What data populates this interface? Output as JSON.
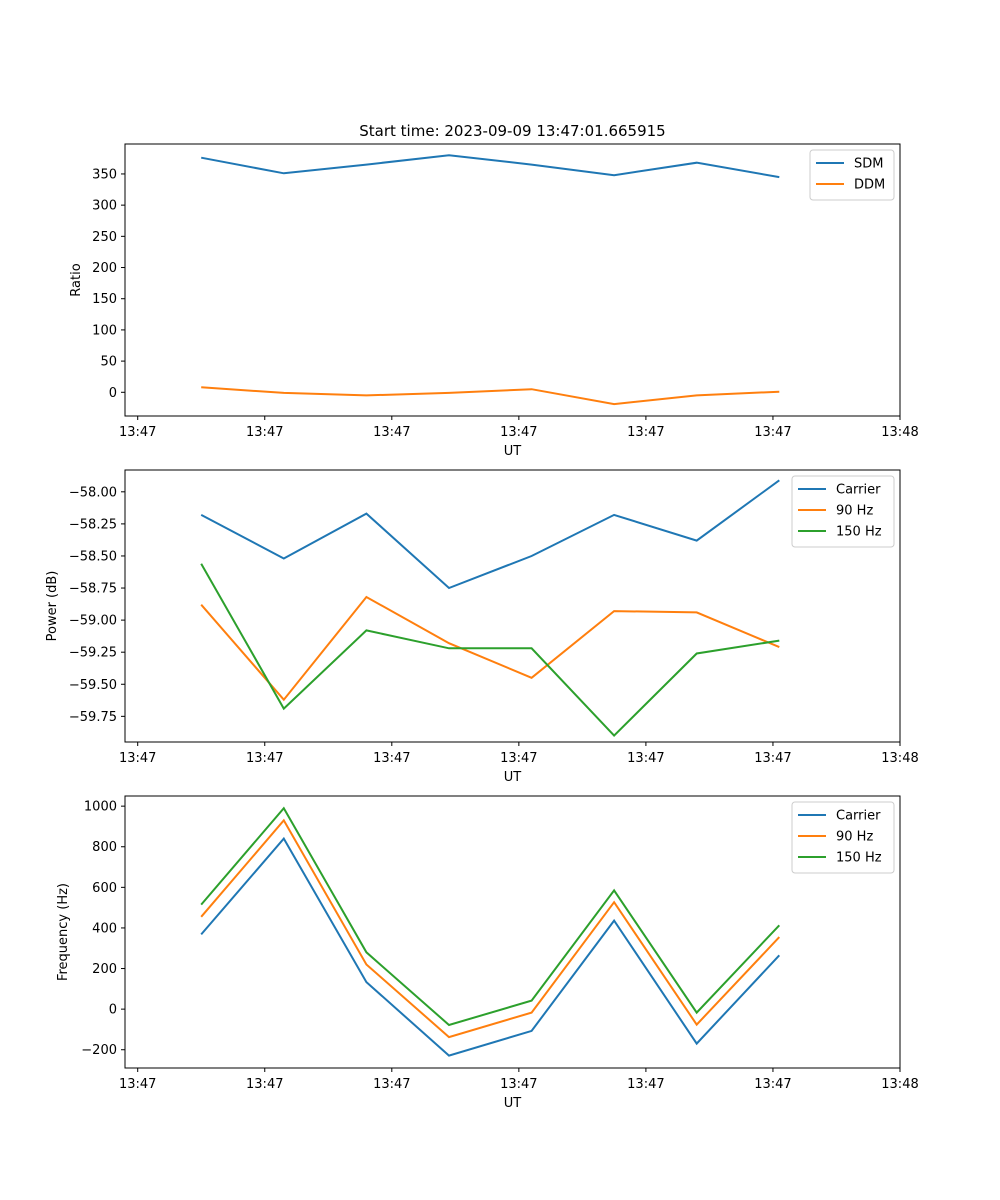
{
  "title": "Start time: 2023-09-09 13:47:01.665915",
  "colors": {
    "c0": "#1f77b4",
    "c1": "#ff7f0e",
    "c2": "#2ca02c"
  },
  "chart_data": [
    {
      "type": "line",
      "title": "Start time: 2023-09-09 13:47:01.665915",
      "xlabel": "UT",
      "ylabel": "Ratio",
      "x": [
        0.5,
        1.15,
        1.8,
        2.45,
        3.1,
        3.75,
        4.4,
        5.05
      ],
      "xlim": [
        -0.1,
        6.0
      ],
      "xticks": [
        0,
        1,
        2,
        3,
        4,
        5,
        6
      ],
      "xticklabels": [
        "13:47",
        "13:47",
        "13:47",
        "13:47",
        "13:47",
        "13:47",
        "13:48"
      ],
      "ylim": [
        -38,
        398
      ],
      "yticks": [
        0,
        50,
        100,
        150,
        200,
        250,
        300,
        350
      ],
      "yticklabels": [
        "0",
        "50",
        "100",
        "150",
        "200",
        "250",
        "300",
        "350"
      ],
      "legend": "upper right",
      "series": [
        {
          "name": "SDM",
          "color": "#1f77b4",
          "values": [
            376,
            351,
            365,
            380,
            365,
            348,
            368,
            345
          ]
        },
        {
          "name": "DDM",
          "color": "#ff7f0e",
          "values": [
            8,
            -1,
            -5,
            -1,
            5,
            -19,
            -5,
            1
          ]
        }
      ]
    },
    {
      "type": "line",
      "title": "",
      "xlabel": "UT",
      "ylabel": "Power (dB)",
      "x": [
        0.5,
        1.15,
        1.8,
        2.45,
        3.1,
        3.75,
        4.4,
        5.05
      ],
      "xlim": [
        -0.1,
        6.0
      ],
      "xticks": [
        0,
        1,
        2,
        3,
        4,
        5,
        6
      ],
      "xticklabels": [
        "13:47",
        "13:47",
        "13:47",
        "13:47",
        "13:47",
        "13:47",
        "13:48"
      ],
      "ylim": [
        -59.95,
        -57.83
      ],
      "yticks": [
        -59.75,
        -59.5,
        -59.25,
        -59.0,
        -58.75,
        -58.5,
        -58.25,
        -58.0
      ],
      "yticklabels": [
        "−59.75",
        "−59.50",
        "−59.25",
        "−59.00",
        "−58.75",
        "−58.50",
        "−58.25",
        "−58.00"
      ],
      "legend": "upper right",
      "series": [
        {
          "name": "Carrier",
          "color": "#1f77b4",
          "values": [
            -58.18,
            -58.52,
            -58.17,
            -58.75,
            -58.5,
            -58.18,
            -58.38,
            -57.91
          ]
        },
        {
          "name": "90 Hz",
          "color": "#ff7f0e",
          "values": [
            -58.88,
            -59.62,
            -58.82,
            -59.18,
            -59.45,
            -58.93,
            -58.94,
            -59.21
          ]
        },
        {
          "name": "150 Hz",
          "color": "#2ca02c",
          "values": [
            -58.56,
            -59.69,
            -59.08,
            -59.22,
            -59.22,
            -59.9,
            -59.26,
            -59.16
          ]
        }
      ]
    },
    {
      "type": "line",
      "title": "",
      "xlabel": "UT",
      "ylabel": "Frequency (Hz)",
      "x": [
        0.5,
        1.15,
        1.8,
        2.45,
        3.1,
        3.75,
        4.4,
        5.05
      ],
      "xlim": [
        -0.1,
        6.0
      ],
      "xticks": [
        0,
        1,
        2,
        3,
        4,
        5,
        6
      ],
      "xticklabels": [
        "13:47",
        "13:47",
        "13:47",
        "13:47",
        "13:47",
        "13:47",
        "13:48"
      ],
      "ylim": [
        -290,
        1050
      ],
      "yticks": [
        -200,
        0,
        200,
        400,
        600,
        800,
        1000
      ],
      "yticklabels": [
        "−200",
        "0",
        "200",
        "400",
        "600",
        "800",
        "1000"
      ],
      "legend": "upper right",
      "series": [
        {
          "name": "Carrier",
          "color": "#1f77b4",
          "values": [
            368,
            840,
            133,
            -229,
            -107,
            436,
            -170,
            265
          ]
        },
        {
          "name": "90 Hz",
          "color": "#ff7f0e",
          "values": [
            455,
            930,
            220,
            -138,
            -17,
            527,
            -76,
            355
          ]
        },
        {
          "name": "150 Hz",
          "color": "#2ca02c",
          "values": [
            515,
            990,
            280,
            -78,
            42,
            585,
            -17,
            413
          ]
        }
      ]
    }
  ]
}
